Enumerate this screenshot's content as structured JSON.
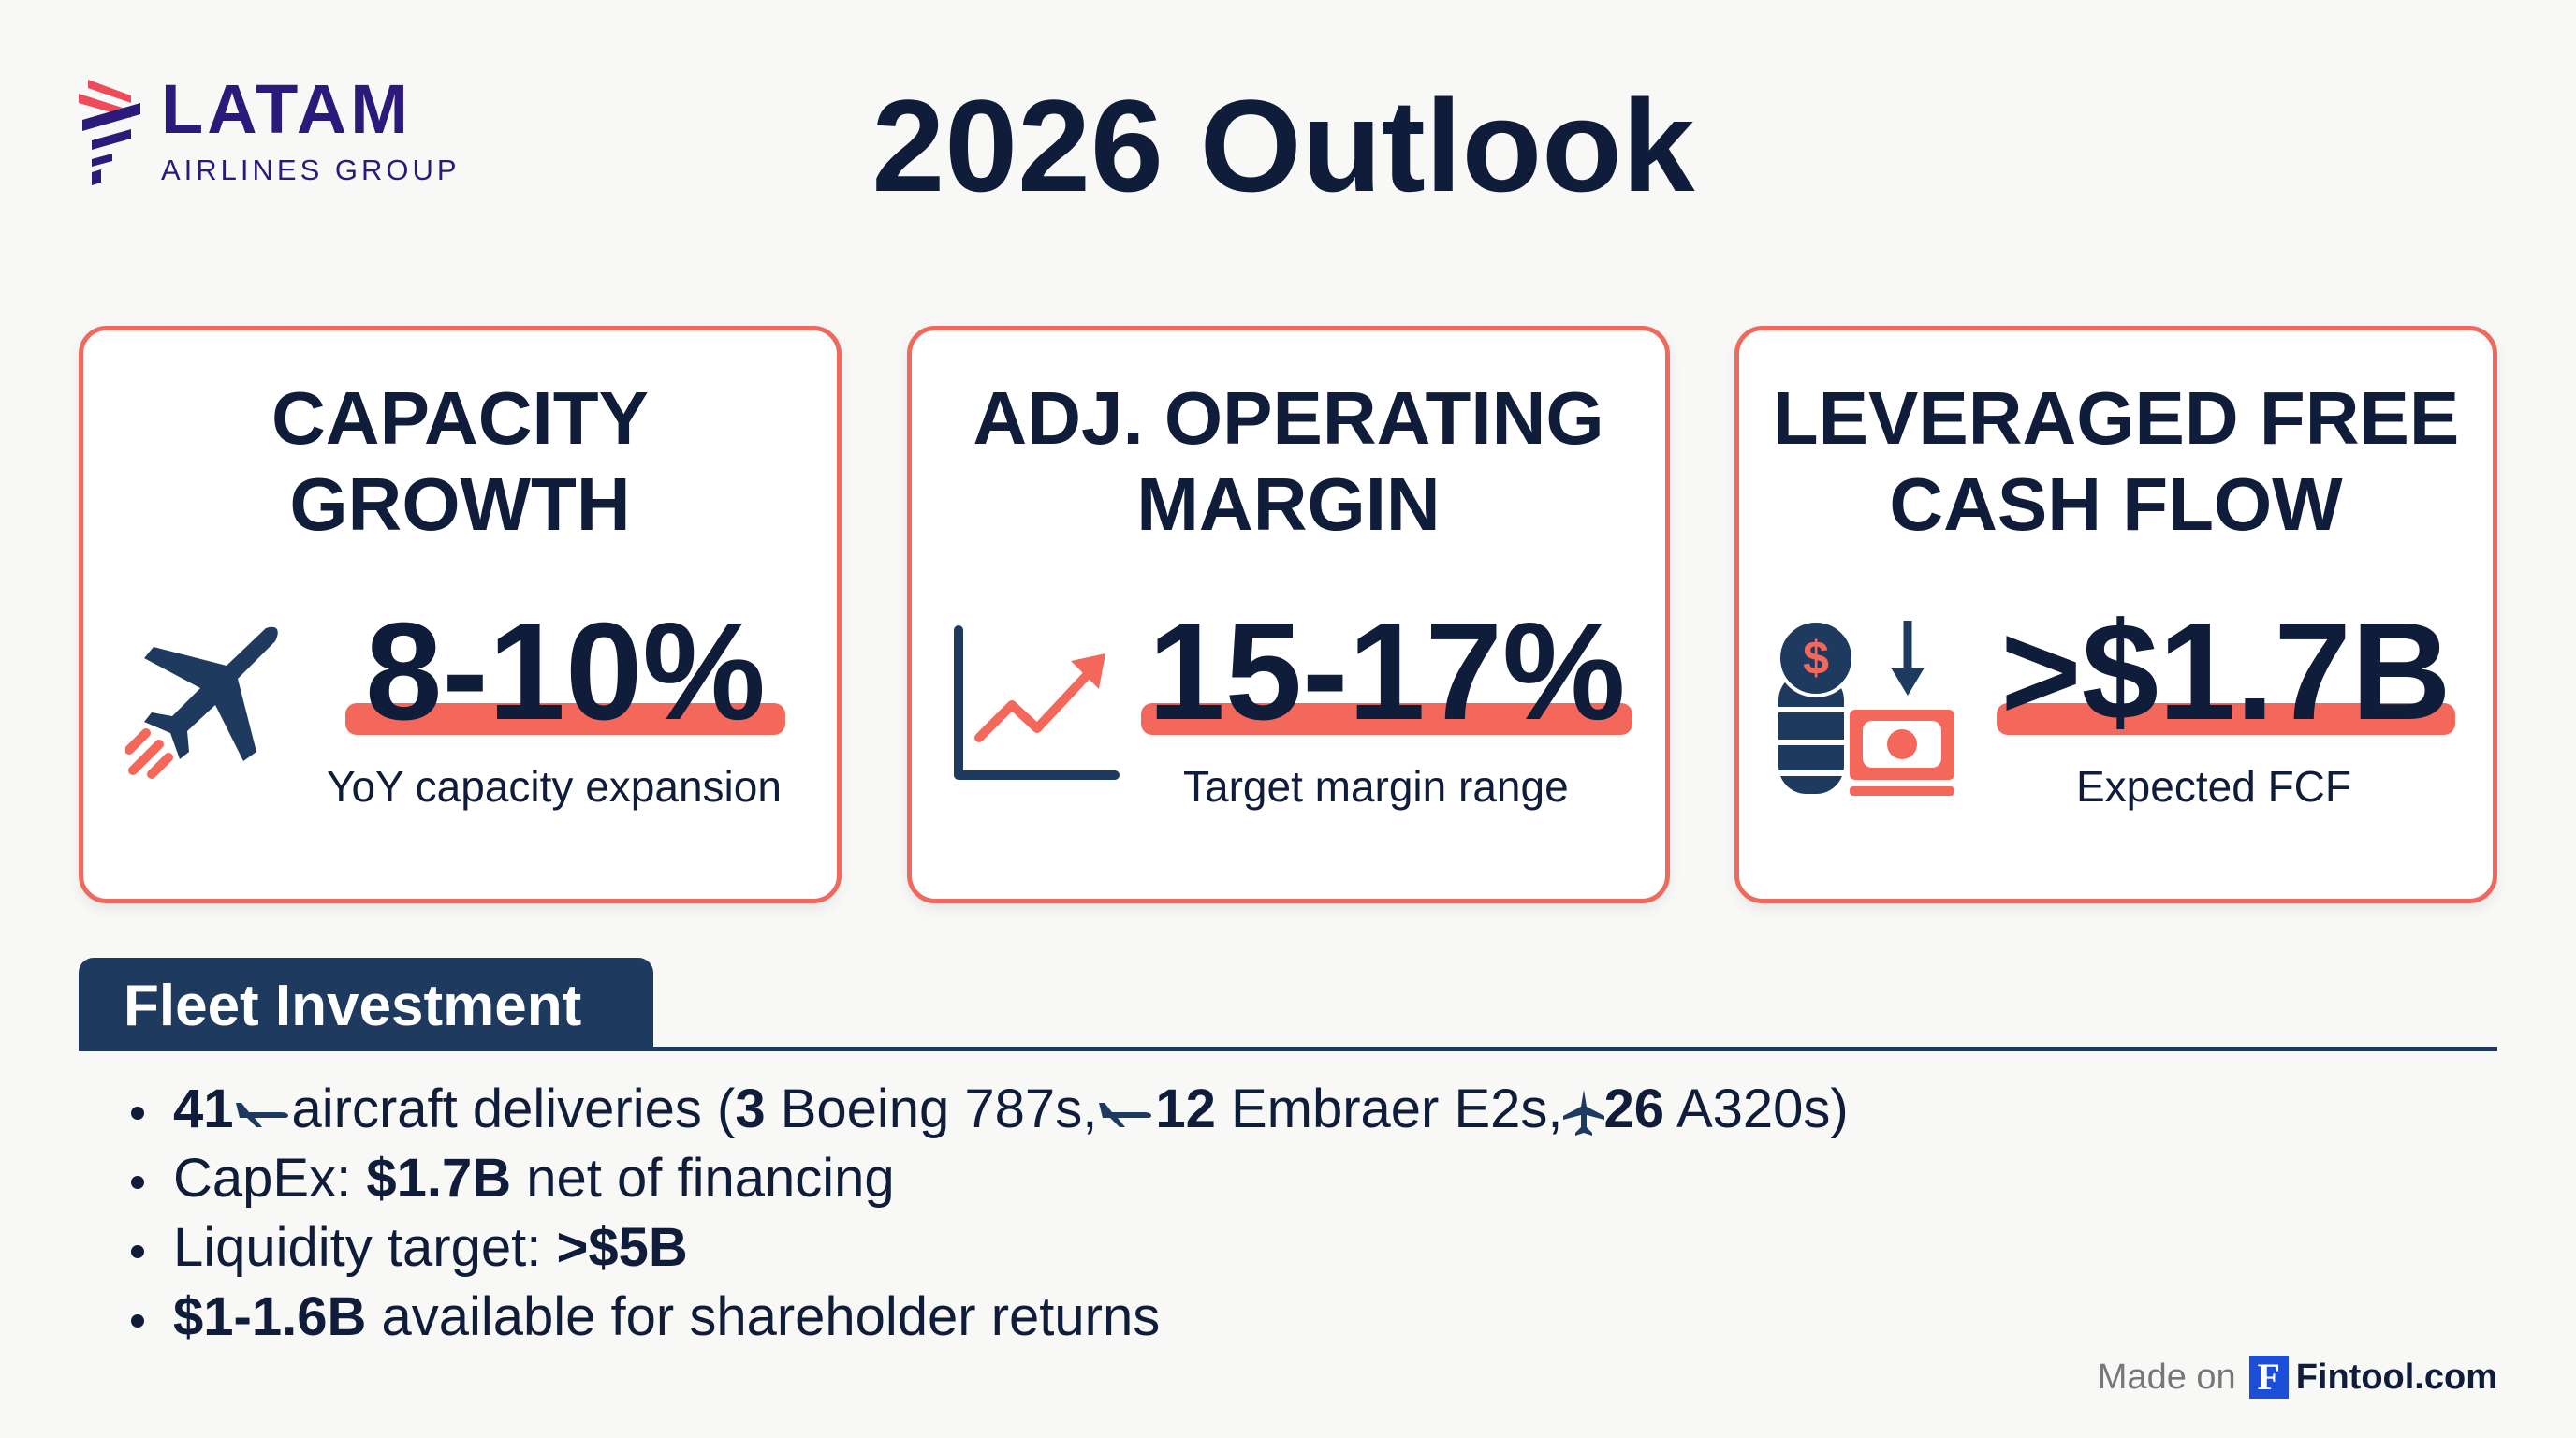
{
  "logo": {
    "name": "LATAM",
    "sub": "AIRLINES GROUP"
  },
  "title": "2026 Outlook",
  "cards": [
    {
      "title_l1": "CAPACITY",
      "title_l2": "GROWTH",
      "value": "8-10%",
      "subtitle": "YoY capacity expansion",
      "icon": "airplane-icon"
    },
    {
      "title_l1": "ADJ. OPERATING",
      "title_l2": "MARGIN",
      "value": "15-17%",
      "subtitle": "Target margin range",
      "icon": "trend-up-chart-icon"
    },
    {
      "title_l1": "LEVERAGED FREE",
      "title_l2": "CASH FLOW",
      "value": ">$1.7B",
      "subtitle": "Expected FCF",
      "icon": "coins-cash-icon"
    }
  ],
  "fleet": {
    "heading": "Fleet Investment",
    "b1": {
      "n1": "41",
      "t1": "aircraft deliveries (",
      "n2": "3",
      "t2": " Boeing 787s,",
      "n3": "12",
      "t3": " Embraer E2s,",
      "n4": "26",
      "t4": " A320s)"
    },
    "b2": {
      "t1": "CapEx: ",
      "n1": "$1.7B",
      "t2": " net of financing"
    },
    "b3": {
      "t1": "Liquidity target: ",
      "n1": ">$5B"
    },
    "b4": {
      "n1": "$1-1.6B",
      "t1": " available for shareholder returns"
    }
  },
  "footer": {
    "made": "Made on",
    "brand_letter": "F",
    "brand": "Fintool.com"
  },
  "colors": {
    "navy": "#0f1c3a",
    "accent": "#f3685a",
    "fleet": "#1e3a5f",
    "logo": "#2b1a7a"
  }
}
